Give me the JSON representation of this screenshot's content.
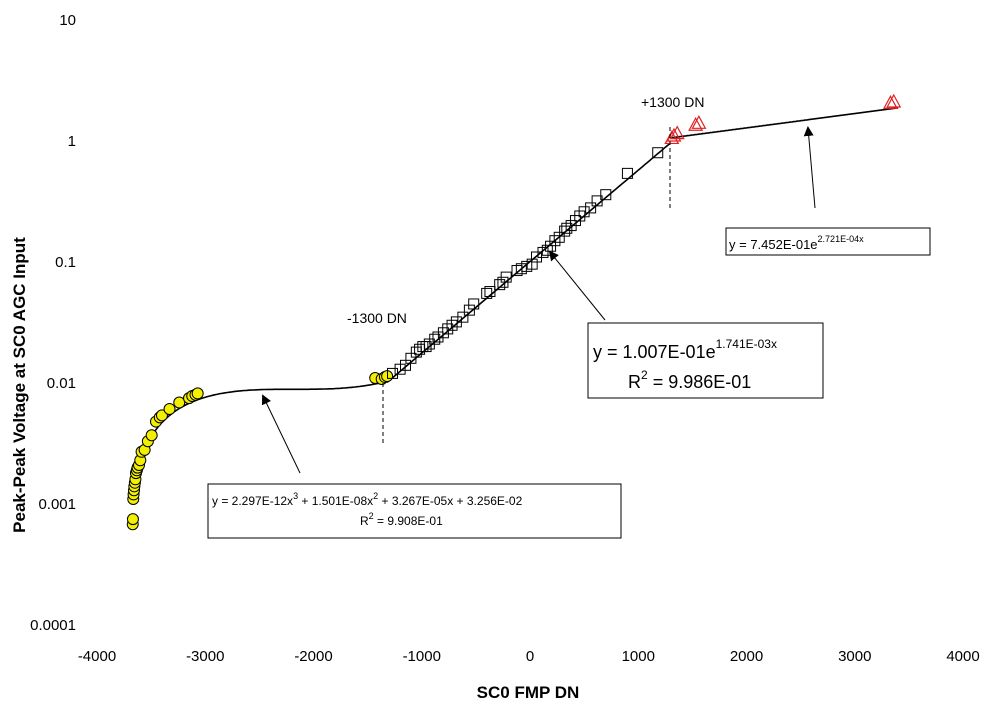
{
  "chart_data": {
    "type": "scatter",
    "title": "",
    "xlabel": "SC0 FMP DN",
    "ylabel": "Peak-Peak Voltage at SC0 AGC Input",
    "xlim": [
      -4000,
      4000
    ],
    "ylim": [
      0.0001,
      10
    ],
    "y_scale": "log",
    "grid": false,
    "legend": "none",
    "x_ticks": [
      "-4000",
      "-3000",
      "-2000",
      "-1000",
      "0",
      "1000",
      "2000",
      "3000",
      "4000"
    ],
    "y_ticks": [
      "0.0001",
      "0.001",
      "0.01",
      "0.1",
      "1",
      "10"
    ],
    "colors": {
      "circles": "#f2ef00",
      "squares": "#000000",
      "triangles": "#e02020",
      "fit": "#000000"
    },
    "series": [
      {
        "marker": "circle",
        "x": [
          -3670,
          -3668,
          -3665,
          -3662,
          -3658,
          -3655,
          -3650,
          -3645,
          -3640,
          -3632,
          -3625,
          -3612,
          -3600,
          -3588,
          -3560,
          -3530,
          -3495,
          -3455,
          -3420,
          -3400,
          -3330,
          -3240,
          -3150,
          -3120,
          -3090,
          -3070,
          -1430,
          -1370,
          -1340,
          -1320
        ],
        "y": [
          0.00068,
          0.00075,
          0.0011,
          0.0012,
          0.0013,
          0.0014,
          0.0015,
          0.0016,
          0.0018,
          0.0019,
          0.002,
          0.0021,
          0.0023,
          0.0027,
          0.0028,
          0.0033,
          0.0037,
          0.0048,
          0.0052,
          0.0054,
          0.0061,
          0.0069,
          0.0075,
          0.0078,
          0.008,
          0.0082,
          0.011,
          0.0108,
          0.0112,
          0.0114
        ]
      },
      {
        "marker": "square",
        "x": [
          -1270,
          -1200,
          -1150,
          -1100,
          -1050,
          -1020,
          -990,
          -960,
          -930,
          -880,
          -850,
          -800,
          -760,
          -720,
          -680,
          -620,
          -560,
          -520,
          -400,
          -370,
          -280,
          -250,
          -220,
          -120,
          -80,
          -30,
          20,
          60,
          120,
          160,
          190,
          230,
          270,
          320,
          340,
          380,
          420,
          460,
          500,
          560,
          620,
          700,
          900,
          1180
        ],
        "y": [
          0.012,
          0.013,
          0.014,
          0.016,
          0.018,
          0.019,
          0.02,
          0.02,
          0.021,
          0.023,
          0.024,
          0.026,
          0.028,
          0.03,
          0.032,
          0.035,
          0.04,
          0.045,
          0.055,
          0.057,
          0.065,
          0.068,
          0.075,
          0.085,
          0.088,
          0.092,
          0.096,
          0.11,
          0.12,
          0.125,
          0.135,
          0.15,
          0.16,
          0.18,
          0.19,
          0.2,
          0.22,
          0.24,
          0.26,
          0.28,
          0.32,
          0.36,
          0.54,
          0.8
        ]
      },
      {
        "marker": "triangle",
        "x": [
          1310,
          1330,
          1360,
          1530,
          1560,
          3330,
          3360
        ],
        "y": [
          1.05,
          1.1,
          1.15,
          1.35,
          1.4,
          2.05,
          2.1
        ]
      }
    ],
    "fits": [
      {
        "label_line1_pre": "y = 2.297E-12x",
        "label_line1_tail": " + 1.501E-08x",
        "label_line1_end": " + 3.267E-05x + 3.256E-02",
        "r2_value": " = 9.908E-01",
        "range": [
          -3680,
          -1320
        ]
      },
      {
        "label_line1": "y = 1.007E-01e",
        "exponent": "1.741E-03x",
        "r2_value": " = 9.986E-01",
        "range": [
          -1320,
          1300
        ]
      },
      {
        "label_line1": "y = 7.452E-01e",
        "exponent": "2.721E-04x",
        "range": [
          1300,
          3400
        ]
      }
    ],
    "annotations": {
      "minus_label": "-1300 DN",
      "plus_label": "+1300 DN",
      "r_letter": "R",
      "sup2": "2",
      "sup3": "3"
    }
  }
}
